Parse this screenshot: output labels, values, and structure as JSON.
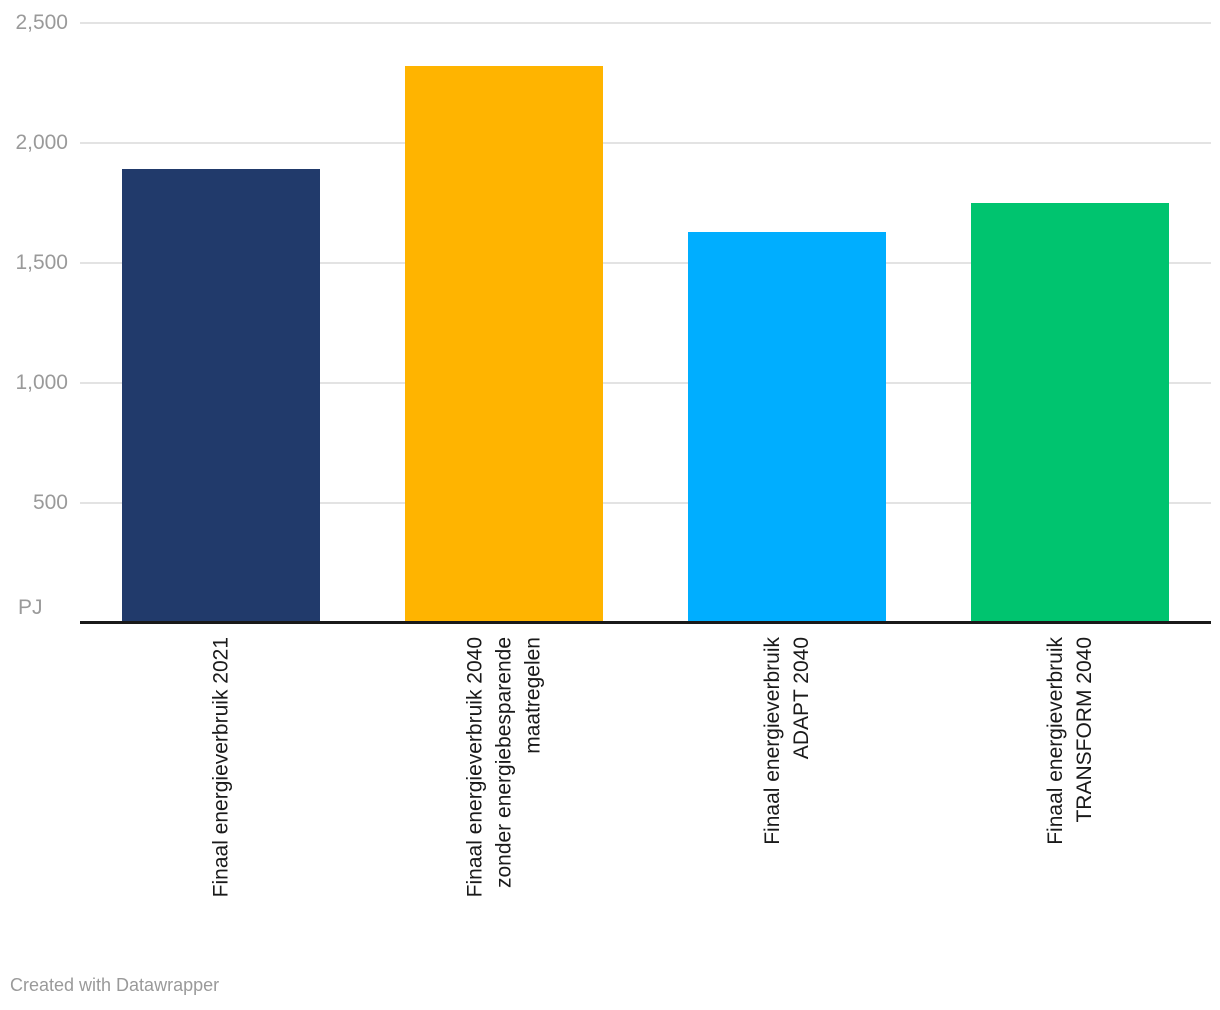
{
  "chart_data": {
    "type": "bar",
    "title": "",
    "unit": "PJ",
    "categories": [
      "Finaal energieverbruik 2021",
      "Finaal energieverbruik 2040 zonder energiebesparende maatregelen",
      "Finaal energieverbruik ADAPT 2040",
      "Finaal energieverbruik TRANSFORM 2040"
    ],
    "category_lines": [
      [
        "Finaal energieverbruik 2021"
      ],
      [
        "Finaal energieverbruik 2040",
        "zonder energiebesparende",
        "maatregelen"
      ],
      [
        "Finaal energieverbruik",
        "ADAPT 2040"
      ],
      [
        "Finaal energieverbruik",
        "TRANSFORM 2040"
      ]
    ],
    "values": [
      1890,
      2320,
      1630,
      1750
    ],
    "bar_colors": [
      "#213a6b",
      "#ffb400",
      "#00aeff",
      "#00c46f"
    ],
    "ylim": [
      0,
      2500
    ],
    "yticks": [
      500,
      1000,
      1500,
      2000,
      2500
    ],
    "ytick_labels": [
      "500",
      "1,000",
      "1,500",
      "2,000",
      "2,500"
    ],
    "grid": "horizontal",
    "legend": "none"
  },
  "footer": {
    "credit": "Created with Datawrapper"
  },
  "colors": {
    "grid": "#e3e3e3",
    "axis_line": "#191919",
    "tick_text": "#9a9a9a",
    "category_text": "#1a1a1a",
    "background": "#ffffff"
  }
}
